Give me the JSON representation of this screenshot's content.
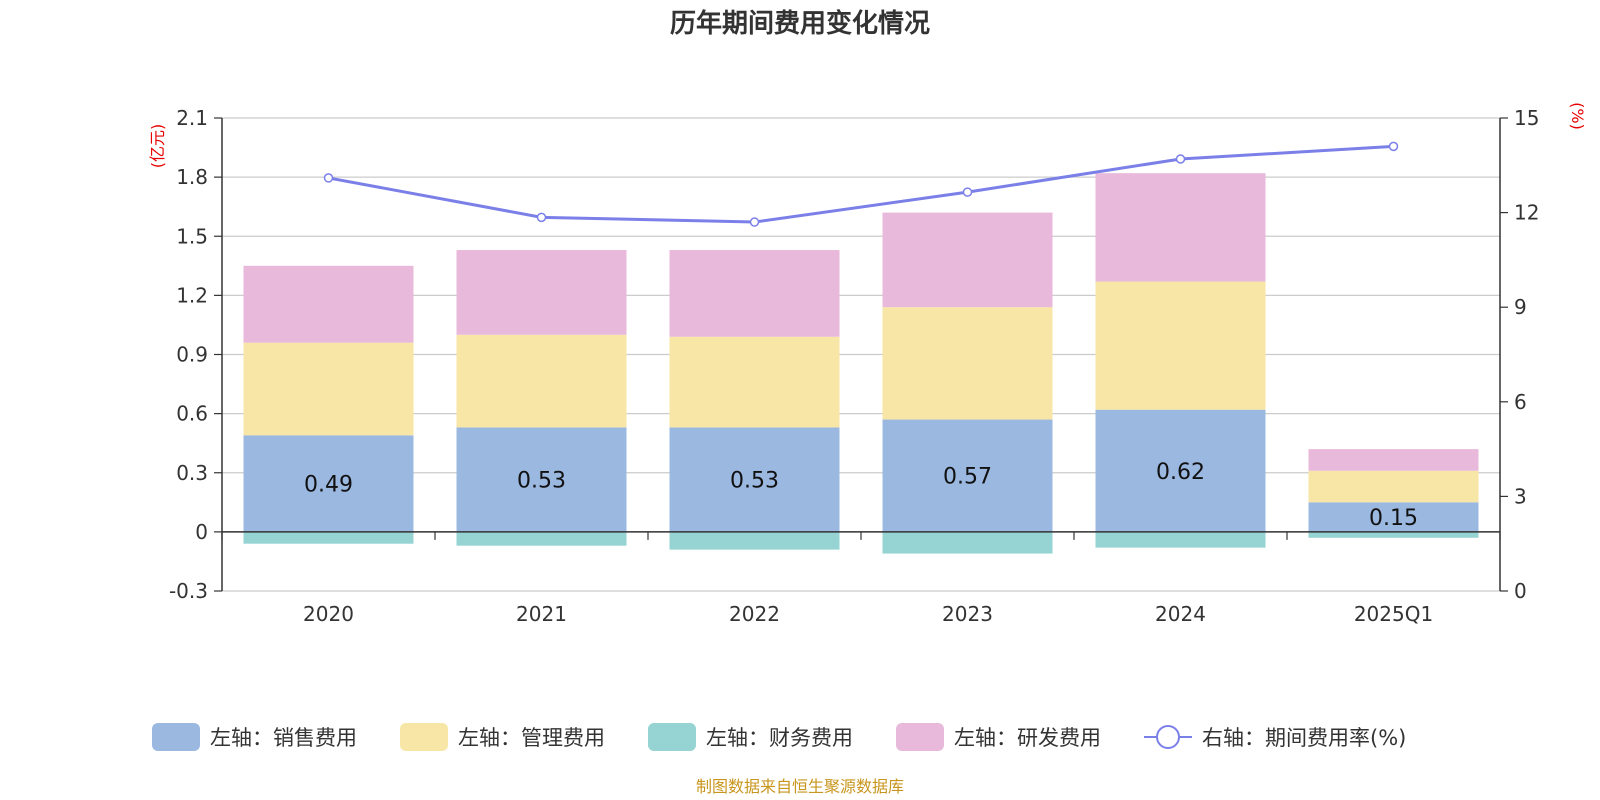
{
  "chart_data": {
    "type": "bar",
    "title": "历年期间费用变化情况",
    "categories": [
      "2020",
      "2021",
      "2022",
      "2023",
      "2024",
      "2025Q1"
    ],
    "left_axis": {
      "unit": "(亿元)",
      "ylim": [
        -0.3,
        2.1
      ],
      "ticks": [
        "2.1",
        "1.8",
        "1.5",
        "1.2",
        "0.9",
        "0.6",
        "0.3",
        "0",
        "-0.3"
      ]
    },
    "right_axis": {
      "unit": "(%)",
      "ylim": [
        0,
        15
      ],
      "ticks": [
        "15",
        "12",
        "9",
        "6",
        "3",
        "0"
      ]
    },
    "series": [
      {
        "name": "左轴：销售费用",
        "color": "#9bb8e1",
        "values": [
          0.49,
          0.53,
          0.53,
          0.57,
          0.62,
          0.15
        ],
        "labels": [
          "0.49",
          "0.53",
          "0.53",
          "0.57",
          "0.62",
          "0.15"
        ]
      },
      {
        "name": "左轴：管理费用",
        "color": "#f8e6a6",
        "values": [
          0.47,
          0.47,
          0.46,
          0.57,
          0.65,
          0.16
        ]
      },
      {
        "name": "左轴：财务费用",
        "color": "#95d4d3",
        "values": [
          -0.06,
          -0.07,
          -0.09,
          -0.11,
          -0.08,
          -0.03
        ]
      },
      {
        "name": "左轴：研发费用",
        "color": "#e8b9da",
        "values": [
          0.39,
          0.43,
          0.44,
          0.48,
          0.55,
          0.11
        ]
      }
    ],
    "line": {
      "name": "右轴：期间费用率(%)",
      "color": "#7b7fe8",
      "values": [
        13.1,
        11.85,
        11.7,
        12.65,
        13.7,
        14.1
      ]
    },
    "legend_position": "bottom",
    "grid": true
  },
  "footer": {
    "source": "制图数据来自恒生聚源数据库"
  }
}
